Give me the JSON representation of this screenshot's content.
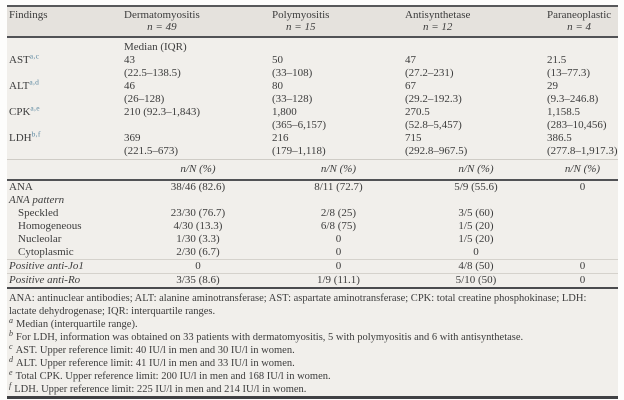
{
  "header": {
    "columns": [
      {
        "name": "Findings",
        "n": ""
      },
      {
        "name": "Dermatomyositis",
        "n": "n = 49"
      },
      {
        "name": "Polymyositis",
        "n": "n = 15"
      },
      {
        "name": "Antisynthetase",
        "n": "n = 12"
      },
      {
        "name": "Paraneoplastic",
        "n": "n = 4"
      }
    ]
  },
  "median_section": {
    "unit_label": "Median (IQR)",
    "rows": [
      {
        "label": "AST",
        "sup": "a,c",
        "dm1": "43",
        "dm2": "(22.5–138.5)",
        "pm1": "50",
        "pm2": "(33–108)",
        "as1": "47",
        "as2": "(27.2–231)",
        "pn1": "21.5",
        "pn2": "(13–77.3)"
      },
      {
        "label": "ALT",
        "sup": "a,d",
        "dm1": "46",
        "dm2": "(26–128)",
        "pm1": "80",
        "pm2": "(33–128)",
        "as1": "67",
        "as2": "(29.2–192.3)",
        "pn1": "29",
        "pn2": "(9.3–246.8)"
      },
      {
        "label": "CPK",
        "sup": "a,e",
        "dm1": "210 (92.3–1,843)",
        "dm2": "",
        "pm1": "1,800",
        "pm2": "(365–6,157)",
        "as1": "270.5",
        "as2": "(52.8–5,457)",
        "pn1": "1,158.5",
        "pn2": "(283–10,456)"
      },
      {
        "label": "LDH",
        "sup": "b,f",
        "dm1": "369",
        "dm2": "(221.5–673)",
        "pm1": "216",
        "pm2": "(179–1,118)",
        "as1": "715",
        "as2": "(292.8–967.5)",
        "pn1": "386.5",
        "pn2": "(277.8–1,917.3)"
      }
    ]
  },
  "count_section": {
    "unit_label": "n/N (%)",
    "rows": [
      {
        "label": "ANA",
        "dm": "38/46 (82.6)",
        "pm": "8/11 (72.7)",
        "as": "5/9 (55.6)",
        "pn": "0"
      },
      {
        "label": "ANA pattern",
        "dm": "",
        "pm": "",
        "as": "",
        "pn": ""
      },
      {
        "label": "Speckled",
        "dm": "23/30 (76.7)",
        "pm": "2/8 (25)",
        "as": "3/5 (60)",
        "pn": ""
      },
      {
        "label": "Homogeneous",
        "dm": "4/30 (13.3)",
        "pm": "6/8 (75)",
        "as": "1/5 (20)",
        "pn": ""
      },
      {
        "label": "Nucleolar",
        "dm": "1/30 (3.3)",
        "pm": "0",
        "as": "1/5 (20)",
        "pn": ""
      },
      {
        "label": "Cytoplasmic",
        "dm": "2/30 (6.7)",
        "pm": "0",
        "as": "0",
        "pn": ""
      },
      {
        "label": "Positive anti-Jo1",
        "dm": "0",
        "pm": "0",
        "as": "4/8 (50)",
        "pn": "0"
      },
      {
        "label": "Positive anti-Ro",
        "dm": "3/35 (8.6)",
        "pm": "1/9 (11.1)",
        "as": "5/10 (50)",
        "pn": "0"
      }
    ]
  },
  "footnotes": {
    "abbreviations": "ANA: antinuclear antibodies; ALT: alanine aminotransferase; AST: aspartate aminotransferase; CPK: total creatine phosphokinase; LDH: lactate dehydrogenase; IQR: interquartile ranges.",
    "items": [
      {
        "marker": "a",
        "text": "Median (interquartile range)."
      },
      {
        "marker": "b",
        "text": "For LDH, information was obtained on 33 patients with dermatomyositis, 5 with polymyositis and 6 with antisynthetase."
      },
      {
        "marker": "c",
        "text": "AST. Upper reference limit: 40 IU/l in men and 30 IU/l in women."
      },
      {
        "marker": "d",
        "text": "ALT. Upper reference limit: 41 IU/l in men and 33 IU/l in women."
      },
      {
        "marker": "e",
        "text": "Total CPK. Upper reference limit: 200 IU/l in men and 168 IU/l in women."
      },
      {
        "marker": "f",
        "text": "LDH. Upper reference limit: 225 IU/l in men and 214 IU/l in women."
      }
    ]
  },
  "colors": {
    "header_bg": "#e5e2dd",
    "body_bg": "#f1efeb",
    "text": "#3c3c3c",
    "rule_dark": "#4d4e50",
    "rule_light": "#cfccc6",
    "superscript_marker": "#5b87a0"
  }
}
